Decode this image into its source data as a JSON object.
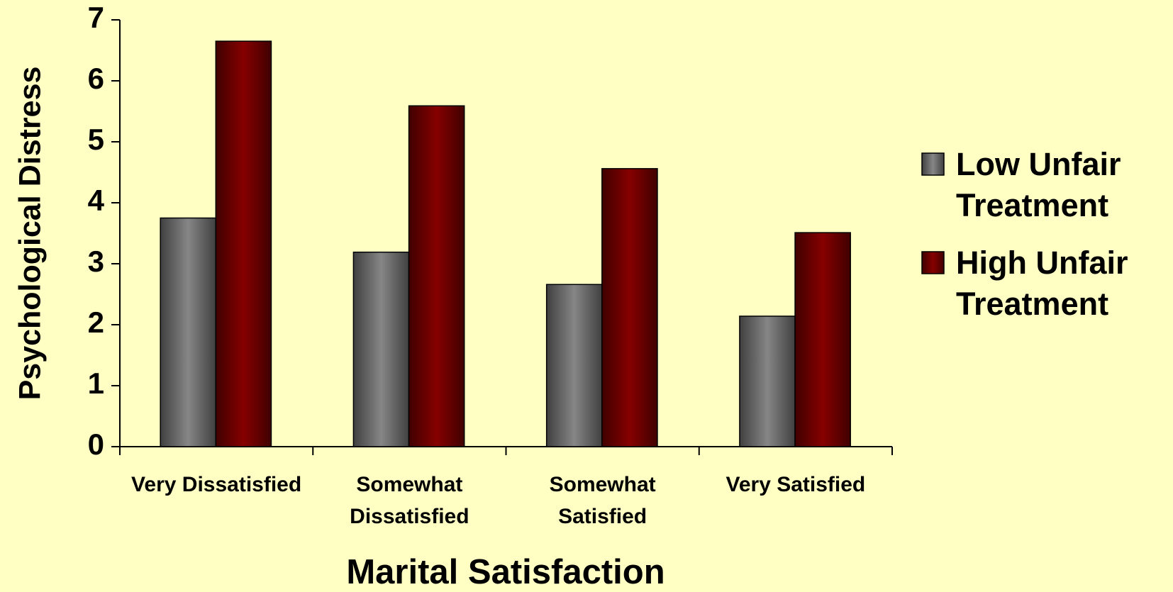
{
  "chart_data": {
    "type": "bar",
    "x_label": "Marital Satisfaction",
    "y_label": "Psychological Distress",
    "categories": [
      "Very Dissatisfied",
      "Somewhat Dissatisfied",
      "Somewhat Satisfied",
      "Very Satisfied"
    ],
    "series": [
      {
        "name": "Low Unfair Treatment",
        "color": "#808080",
        "values": [
          3.75,
          3.19,
          2.66,
          2.14
        ]
      },
      {
        "name": "High Unfair Treatment",
        "color": "#800000",
        "values": [
          6.65,
          5.59,
          4.56,
          3.51
        ]
      }
    ],
    "ylim": [
      0,
      7
    ],
    "yticks": [
      0,
      1,
      2,
      3,
      4,
      5,
      6,
      7
    ],
    "grid": false,
    "legend": "right"
  }
}
